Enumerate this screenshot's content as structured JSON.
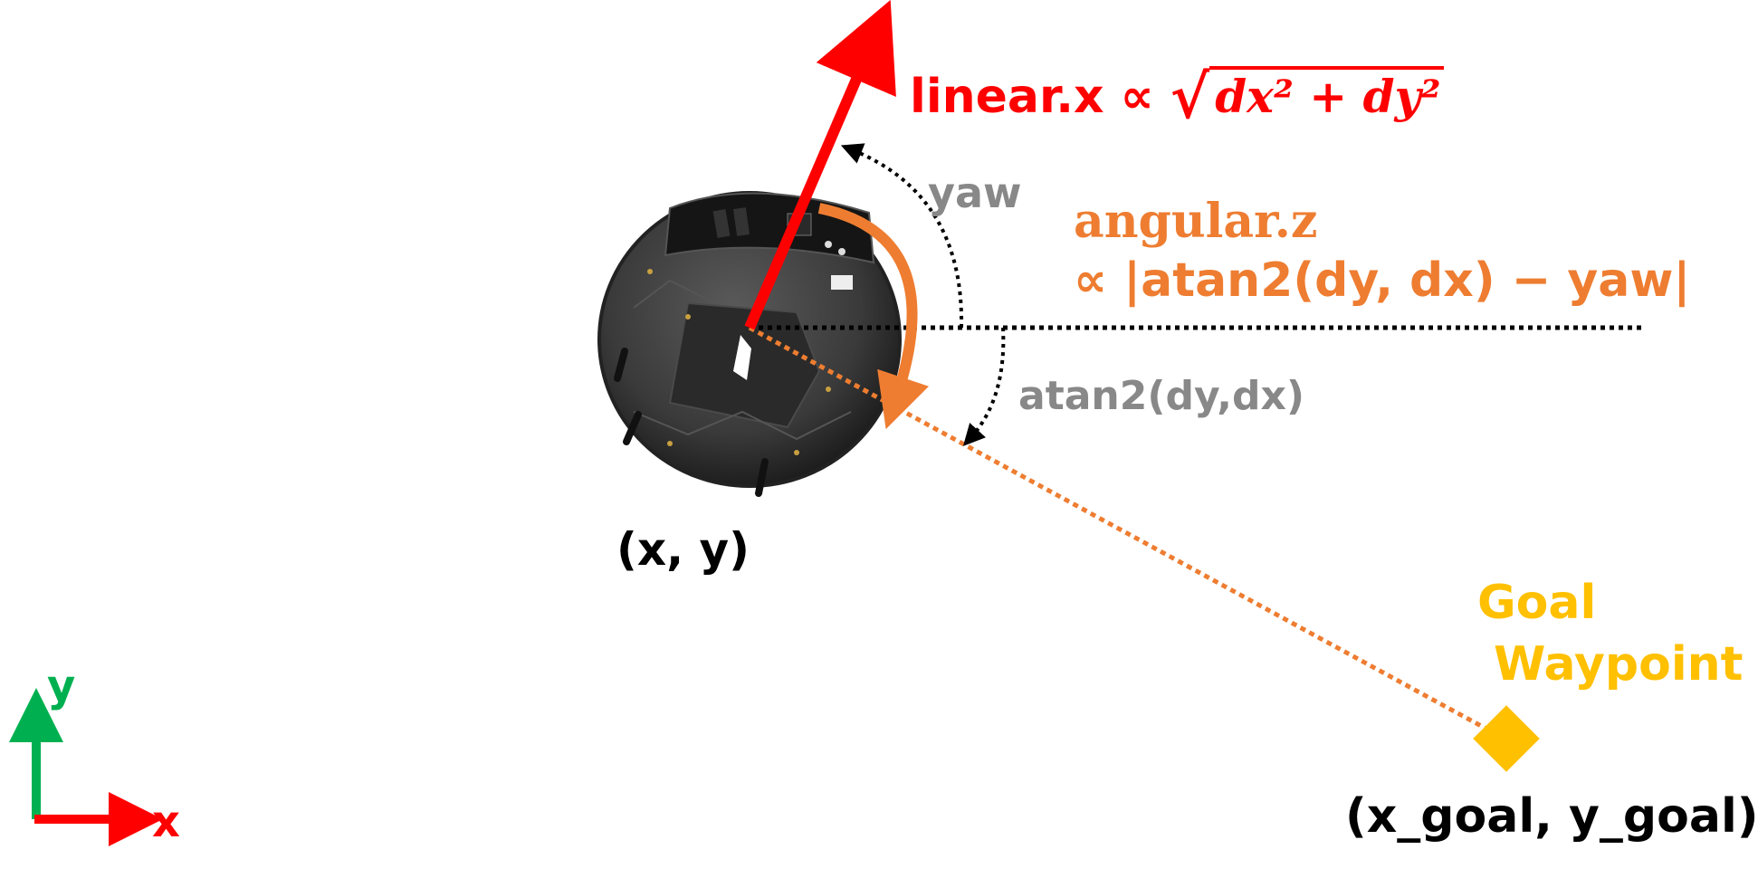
{
  "labels": {
    "linear_prefix": "linear.x ∝",
    "linear_sqrt_body": "dx² + dy²",
    "yaw": "yaw",
    "angular_z": "angular.z",
    "angular_expr": "∝ |atan2(dy, dx) − yaw|",
    "atan2": "atan2(dy,dx)",
    "robot_pos": "(x, y)",
    "goal_line1": "Goal",
    "goal_line2": "Waypoint",
    "goal_pos": "(x_goal, y_goal)",
    "axis_x": "x",
    "axis_y": "y"
  },
  "icons": {
    "robot": "robot-base-icon",
    "goal": "goal-waypoint-marker-icon"
  },
  "colors": {
    "linear": "#ff0000",
    "angular": "#ee7d31",
    "goal": "#ffc000",
    "annotation": "#888888",
    "axis_x": "#ff0000",
    "axis_y": "#00b050"
  }
}
